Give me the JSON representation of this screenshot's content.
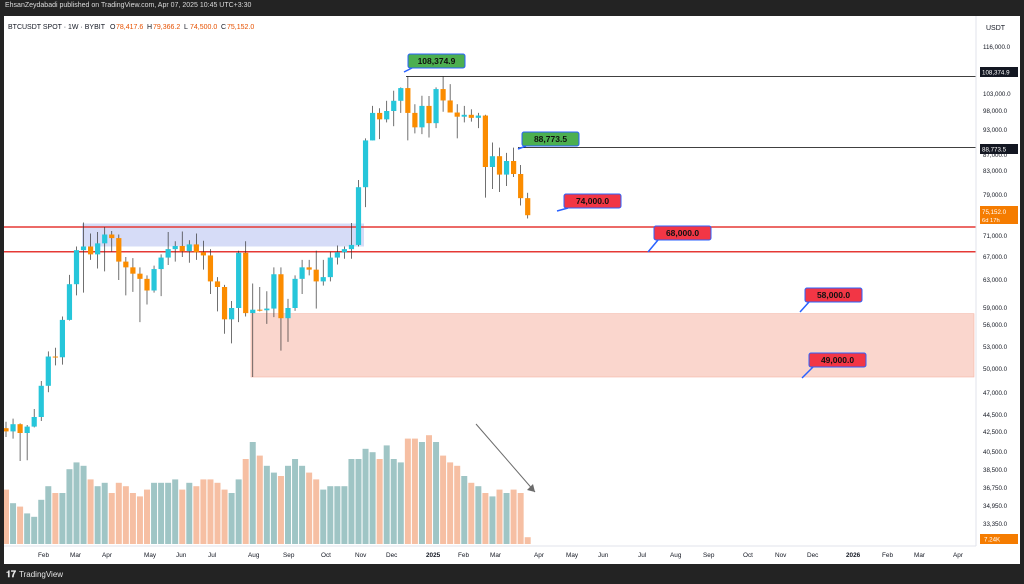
{
  "header": {
    "publisher_line": "EhsanZeydabadi published on TradingView.com, Apr 07, 2025 10:45 UTC+3:30"
  },
  "footer": {
    "brand": "TradingView",
    "logo_icon": "tradingview-logo-icon"
  },
  "chart_data": {
    "type": "candlestick",
    "symbol": "BTCUSDT SPOT · 1W · BYBIT",
    "ohlc_legend": {
      "o_label": "O",
      "o_value": "78,417.6",
      "h_label": "H",
      "h_value": "79,366.2",
      "l_label": "L",
      "l_value": "74,500.0",
      "c_label": "C",
      "c_value": "75,152.0"
    },
    "currency_label": "USDT",
    "y_axis_ticks": [
      "116,000.0",
      "110,000.0",
      "103,000.0",
      "98,000.0",
      "93,000.0",
      "87,000.0",
      "83,000.0",
      "79,000.0",
      "75,000.0",
      "71,000.0",
      "67,000.0",
      "63,000.0",
      "59,000.0",
      "56,000.0",
      "53,000.0",
      "50,000.0",
      "47,000.0",
      "44,500.0",
      "42,500.0",
      "40,500.0",
      "38,500.0",
      "36,750.0",
      "34,950.0",
      "33,350.0",
      "31,750.0"
    ],
    "x_axis_ticks": [
      "Feb",
      "Mar",
      "Apr",
      "May",
      "Jun",
      "Jul",
      "Aug",
      "Sep",
      "Oct",
      "Nov",
      "Dec",
      "2025",
      "Feb",
      "Mar",
      "Apr",
      "May",
      "Jun",
      "Jul",
      "Aug",
      "Sep",
      "Oct",
      "Nov",
      "Dec",
      "2026",
      "Feb",
      "Mar",
      "Apr"
    ],
    "price_tags": {
      "high_tag": "108,374.9",
      "mid_tag": "88,773.5",
      "last_price": "75,152.0",
      "countdown": "6d 17h",
      "volume": "7.24K"
    },
    "annotations": [
      {
        "label": "108,374.9",
        "color": "#4caf50"
      },
      {
        "label": "88,773.5",
        "color": "#4caf50"
      },
      {
        "label": "74,000.0",
        "color": "#f23645"
      },
      {
        "label": "68,000.0",
        "color": "#f23645"
      },
      {
        "label": "58,000.0",
        "color": "#f23645"
      },
      {
        "label": "49,000.0",
        "color": "#f23645"
      }
    ],
    "zones": [
      {
        "name": "supply-zone",
        "from": 69000,
        "to": 73500,
        "color": "#d6dcf7"
      },
      {
        "name": "demand-zone",
        "from": 49000,
        "to": 58000,
        "color": "#fad6cd"
      }
    ],
    "horizontal_lines": [
      {
        "value": 108374.9,
        "color": "#000000"
      },
      {
        "value": 88773.5,
        "color": "#000000"
      },
      {
        "value": 72800,
        "color": "#e53935"
      },
      {
        "value": 68000,
        "color": "#e53935"
      }
    ],
    "colors": {
      "up": "#26c6da",
      "down": "#fb8c00",
      "vol_up": "#9fc5c5",
      "vol_down": "#f6bfa3"
    },
    "candles": [
      [
        42600,
        43400,
        41500,
        42200
      ],
      [
        42200,
        43800,
        41300,
        43100
      ],
      [
        43100,
        43200,
        38500,
        42000
      ],
      [
        42000,
        43000,
        38600,
        42800
      ],
      [
        42800,
        45000,
        42700,
        44000
      ],
      [
        44000,
        48500,
        43500,
        47900
      ],
      [
        47900,
        52400,
        47100,
        51700
      ],
      [
        51700,
        52900,
        50500,
        51600
      ],
      [
        51600,
        57500,
        50600,
        56900
      ],
      [
        56900,
        63900,
        56800,
        62400
      ],
      [
        62400,
        69000,
        60800,
        68300
      ],
      [
        68300,
        73700,
        61200,
        69000
      ],
      [
        69000,
        71500,
        66500,
        67500
      ],
      [
        67500,
        71800,
        65000,
        69600
      ],
      [
        69600,
        72800,
        64500,
        71300
      ],
      [
        71300,
        72000,
        68000,
        70600
      ],
      [
        70600,
        71300,
        63000,
        66200
      ],
      [
        66200,
        67000,
        60800,
        65200
      ],
      [
        65200,
        66800,
        61300,
        64100
      ],
      [
        64100,
        65200,
        56500,
        63200
      ],
      [
        63200,
        63800,
        59500,
        61500
      ],
      [
        61500,
        65500,
        61200,
        64900
      ],
      [
        64900,
        67500,
        60700,
        66900
      ],
      [
        66900,
        71800,
        65600,
        68500
      ],
      [
        68500,
        70000,
        66200,
        69100
      ],
      [
        69100,
        71900,
        67000,
        68100
      ],
      [
        68100,
        70200,
        66000,
        69400
      ],
      [
        69400,
        71500,
        66500,
        67900
      ],
      [
        67900,
        70100,
        64800,
        67300
      ],
      [
        67300,
        68500,
        61000,
        62800
      ],
      [
        62800,
        63500,
        58400,
        62000
      ],
      [
        62000,
        62300,
        54800,
        57000
      ],
      [
        57000,
        60000,
        53500,
        59000
      ],
      [
        59000,
        68200,
        56500,
        67800
      ],
      [
        67800,
        70000,
        57500,
        58100
      ],
      [
        58100,
        62500,
        49000,
        58700
      ],
      [
        58700,
        62000,
        58400,
        58600
      ],
      [
        58600,
        61400,
        56200,
        58900
      ],
      [
        58900,
        65200,
        57400,
        64000
      ],
      [
        64000,
        65200,
        52500,
        57200
      ],
      [
        57200,
        60300,
        53700,
        59000
      ],
      [
        59000,
        63800,
        58500,
        63200
      ],
      [
        63200,
        66500,
        61000,
        65200
      ],
      [
        65200,
        66500,
        63800,
        64800
      ],
      [
        64800,
        68200,
        58900,
        62800
      ],
      [
        62800,
        66500,
        62200,
        63500
      ],
      [
        63500,
        68000,
        62800,
        66900
      ],
      [
        66900,
        69200,
        65700,
        67900
      ],
      [
        67900,
        69000,
        66700,
        68500
      ],
      [
        68500,
        73600,
        66700,
        69300
      ],
      [
        69300,
        81500,
        69000,
        80300
      ],
      [
        80300,
        91000,
        76700,
        90500
      ],
      [
        90500,
        99500,
        90500,
        97500
      ],
      [
        97500,
        98800,
        90800,
        95800
      ],
      [
        95800,
        101000,
        95000,
        98000
      ],
      [
        98000,
        104000,
        94000,
        101000
      ],
      [
        101000,
        105000,
        97500,
        104800
      ],
      [
        104800,
        108374.9,
        90500,
        97500
      ],
      [
        97500,
        100000,
        92200,
        93700
      ],
      [
        93700,
        102500,
        92000,
        99500
      ],
      [
        99500,
        102400,
        91200,
        94800
      ],
      [
        94800,
        105000,
        93500,
        104500
      ],
      [
        104500,
        108400,
        97800,
        101100
      ],
      [
        101100,
        106000,
        98000,
        97600
      ],
      [
        97600,
        100000,
        91000,
        96500
      ],
      [
        96500,
        99500,
        95000,
        97000
      ],
      [
        97000,
        98500,
        95200,
        96200
      ],
      [
        96200,
        97500,
        93500,
        96800
      ],
      [
        96800,
        97000,
        78500,
        84000
      ],
      [
        84000,
        90000,
        80000,
        86700
      ],
      [
        86700,
        88773.5,
        79500,
        82400
      ],
      [
        82400,
        87500,
        80500,
        85500
      ],
      [
        85500,
        88773.5,
        82000,
        82500
      ],
      [
        82500,
        84500,
        77000,
        78400
      ],
      [
        78400,
        79366.2,
        74500,
        75152
      ]
    ],
    "volumes": [
      1.6,
      1.2,
      1.1,
      0.9,
      0.8,
      1.3,
      1.7,
      1.5,
      1.5,
      2.2,
      2.4,
      2.3,
      1.9,
      1.7,
      1.8,
      1.5,
      1.8,
      1.7,
      1.5,
      1.4,
      1.6,
      1.8,
      1.8,
      1.8,
      1.9,
      1.6,
      1.8,
      1.7,
      1.9,
      1.9,
      1.8,
      1.6,
      1.5,
      1.9,
      2.5,
      3.0,
      2.6,
      2.3,
      2.1,
      2.0,
      2.3,
      2.5,
      2.3,
      2.1,
      1.9,
      1.6,
      1.7,
      1.7,
      1.7,
      2.5,
      2.5,
      2.8,
      2.7,
      2.5,
      2.9,
      2.5,
      2.4,
      3.1,
      3.1,
      3.0,
      3.2,
      3.0,
      2.6,
      2.4,
      2.3,
      2.0,
      1.8,
      1.7,
      1.5,
      1.4,
      1.6,
      1.5,
      1.6,
      1.5,
      0.2
    ]
  }
}
